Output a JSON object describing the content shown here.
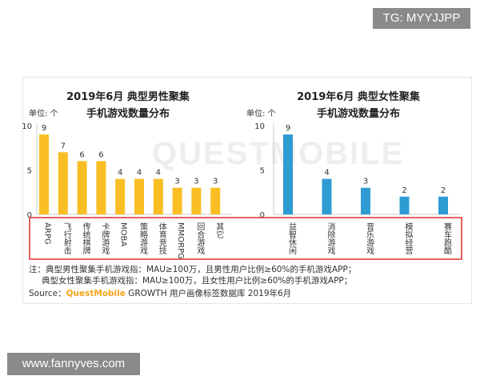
{
  "watermarks": {
    "top_right": "TG: MYYJJPP",
    "bottom_left": "www.fannyves.com",
    "background": "QUESTMOBILE"
  },
  "chart_data": [
    {
      "type": "bar",
      "title_line1": "2019年6月 典型男性聚集",
      "title_line2": "手机游戏数量分布",
      "ylabel": "单位: 个",
      "ylim": [
        0,
        10
      ],
      "yticks": [
        0,
        5,
        10
      ],
      "color": "#f8be24",
      "categories": [
        "ARPG",
        "飞行射击",
        "传统棋牌",
        "卡牌游戏",
        "MOBA",
        "策略游戏",
        "体育竞技",
        "MMORPG",
        "回合游戏",
        "其它"
      ],
      "values": [
        9,
        7,
        6,
        6,
        4,
        4,
        4,
        3,
        3,
        3
      ]
    },
    {
      "type": "bar",
      "title_line1": "2019年6月 典型女性聚集",
      "title_line2": "手机游戏数量分布",
      "ylabel": "单位: 个",
      "ylim": [
        0,
        10
      ],
      "yticks": [
        0,
        5,
        10
      ],
      "color": "#2f9bd3",
      "categories": [
        "益智休闲",
        "消除游戏",
        "音乐游戏",
        "模拟经营",
        "赛车跑酷"
      ],
      "values": [
        9,
        4,
        3,
        2,
        2
      ]
    }
  ],
  "notes": {
    "line1": "注：典型男性聚集手机游戏指：MAU≥100万，且男性用户比例≥60%的手机游戏APP；",
    "line2": "典型女性聚集手机游戏指：MAU≥100万，且女性用户比例≥60%的手机游戏APP；"
  },
  "source": {
    "label": "Source：",
    "brand": "QuestMobile",
    "text": " GROWTH 用户画像标签数据库 2019年6月"
  },
  "colors": {
    "highlight_box": "#e0312b",
    "watermark": "#eeeeee"
  }
}
